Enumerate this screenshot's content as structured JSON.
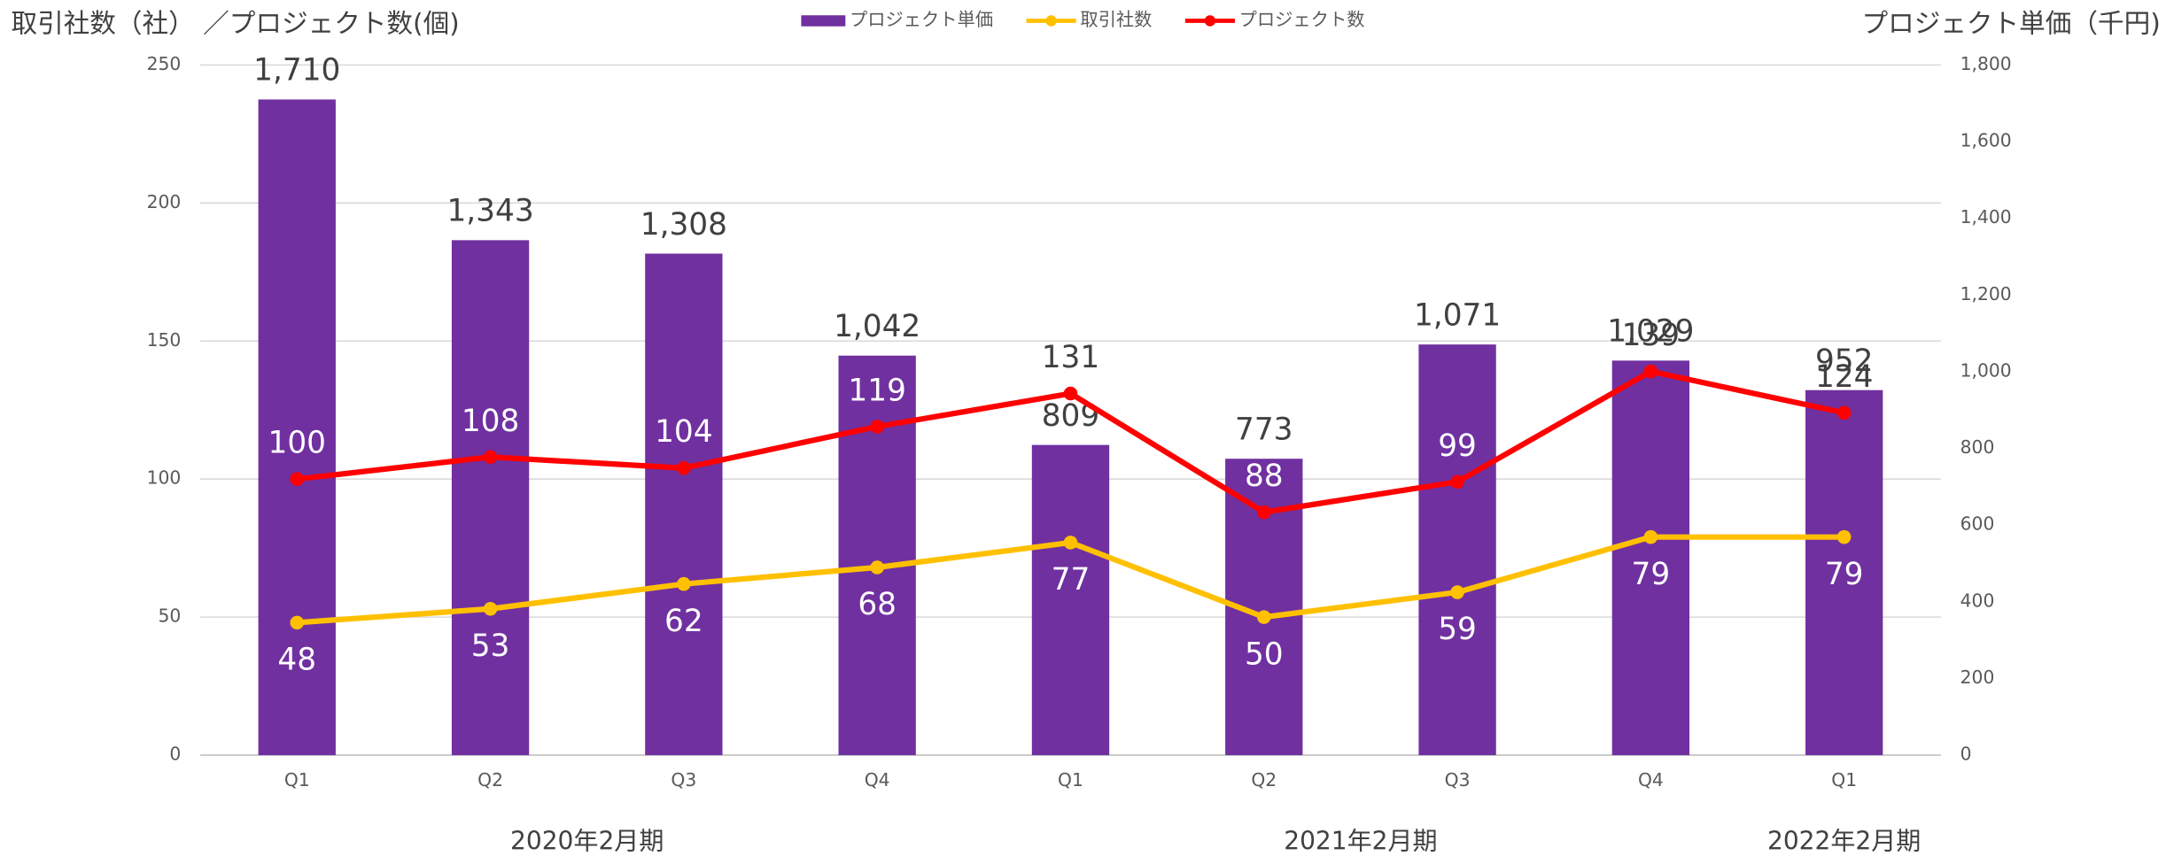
{
  "chart_data": {
    "type": "bar",
    "y_label": "取引社数（社） ／プロジェクト数(個)",
    "y2_label": "プロジェクト単価（千円)",
    "groups": [
      {
        "label": "2020年2月期",
        "categories": [
          "Q1",
          "Q2",
          "Q3",
          "Q4"
        ]
      },
      {
        "label": "2021年2月期",
        "categories": [
          "Q1",
          "Q2",
          "Q3",
          "Q4"
        ]
      },
      {
        "label": "2022年2月期",
        "categories": [
          "Q1"
        ]
      }
    ],
    "ylim": [
      0,
      250
    ],
    "yticks": [
      0,
      50,
      100,
      150,
      200,
      250
    ],
    "y2lim": [
      0,
      1800
    ],
    "y2ticks": [
      0,
      200,
      400,
      600,
      800,
      {
        "value": 1000,
        "label": "1,000"
      },
      {
        "value": 1200,
        "label": "1,200"
      },
      {
        "value": 1400,
        "label": "1,400"
      },
      {
        "value": 1600,
        "label": "1,600"
      },
      {
        "value": 1800,
        "label": "1,800"
      }
    ],
    "grid": true,
    "legend": "top",
    "series": [
      {
        "name": "プロジェクト単価",
        "type": "bar",
        "axis": "y2",
        "color": "#7030a0",
        "values": [
          1710,
          1343,
          1308,
          1042,
          809,
          773,
          1071,
          1029,
          952
        ],
        "value_labels": [
          "1,710",
          "1,343",
          "1,308",
          "1,042",
          "809",
          "773",
          "1,071",
          "1,029",
          "952"
        ]
      },
      {
        "name": "取引社数",
        "type": "line",
        "color": "#ffc000",
        "values": [
          48,
          53,
          62,
          68,
          77,
          50,
          59,
          79,
          79
        ]
      },
      {
        "name": "プロジェクト数",
        "type": "line",
        "color": "#ff0000",
        "values": [
          100,
          108,
          104,
          119,
          131,
          88,
          99,
          139,
          124
        ]
      }
    ]
  }
}
